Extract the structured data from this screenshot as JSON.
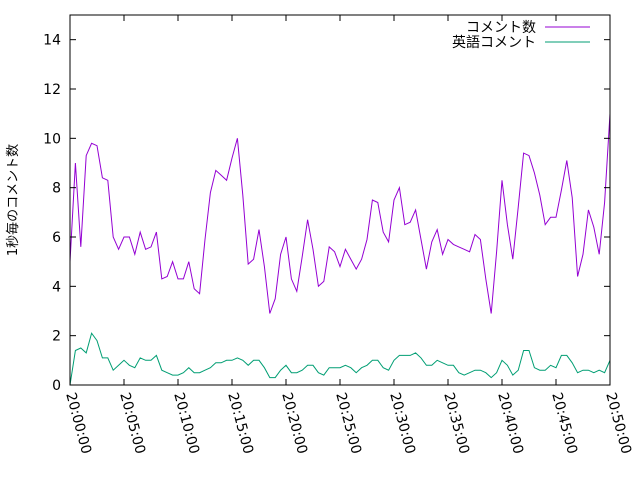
{
  "chart_data": {
    "type": "line",
    "title": "",
    "xlabel": "",
    "ylabel": "1秒毎のコメント数",
    "ylim": [
      0,
      15
    ],
    "yticks": [
      0,
      2,
      4,
      6,
      8,
      10,
      12,
      14
    ],
    "xlim": [
      "20:00:00",
      "20:50:00"
    ],
    "xticks": [
      "20:00:00",
      "20:05:00",
      "20:10:00",
      "20:15:00",
      "20:20:00",
      "20:25:00",
      "20:30:00",
      "20:35:00",
      "20:40:00",
      "20:45:00",
      "20:50:00"
    ],
    "grid": false,
    "legend": "top-right",
    "series": [
      {
        "name": "コメント数",
        "color": "#9400d3",
        "x": [
          "20:00:00",
          "20:00:30",
          "20:01:00",
          "20:01:30",
          "20:02:00",
          "20:02:30",
          "20:03:00",
          "20:03:30",
          "20:04:00",
          "20:04:30",
          "20:05:00",
          "20:05:30",
          "20:06:00",
          "20:06:30",
          "20:07:00",
          "20:07:30",
          "20:08:00",
          "20:08:30",
          "20:09:00",
          "20:09:30",
          "20:10:00",
          "20:10:30",
          "20:11:00",
          "20:11:30",
          "20:12:00",
          "20:12:30",
          "20:13:00",
          "20:13:30",
          "20:14:00",
          "20:14:30",
          "20:15:00",
          "20:15:30",
          "20:16:00",
          "20:16:30",
          "20:17:00",
          "20:17:30",
          "20:18:00",
          "20:18:30",
          "20:19:00",
          "20:19:30",
          "20:20:00",
          "20:20:30",
          "20:21:00",
          "20:21:30",
          "20:22:00",
          "20:22:30",
          "20:23:00",
          "20:23:30",
          "20:24:00",
          "20:24:30",
          "20:25:00",
          "20:25:30",
          "20:26:00",
          "20:26:30",
          "20:27:00",
          "20:27:30",
          "20:28:00",
          "20:28:30",
          "20:29:00",
          "20:29:30",
          "20:30:00",
          "20:30:30",
          "20:31:00",
          "20:31:30",
          "20:32:00",
          "20:32:30",
          "20:33:00",
          "20:33:30",
          "20:34:00",
          "20:34:30",
          "20:35:00",
          "20:35:30",
          "20:36:00",
          "20:36:30",
          "20:37:00",
          "20:37:30",
          "20:38:00",
          "20:38:30",
          "20:39:00",
          "20:39:30",
          "20:40:00",
          "20:40:30",
          "20:41:00",
          "20:41:30",
          "20:42:00",
          "20:42:30",
          "20:43:00",
          "20:43:30",
          "20:44:00",
          "20:44:30",
          "20:45:00",
          "20:45:30",
          "20:46:00",
          "20:46:30",
          "20:47:00",
          "20:47:30",
          "20:48:00",
          "20:48:30",
          "20:49:00",
          "20:49:30",
          "20:50:00"
        ],
        "values": [
          5.0,
          9.0,
          5.6,
          9.3,
          9.8,
          9.7,
          8.4,
          8.3,
          6.0,
          5.5,
          6.0,
          6.0,
          5.3,
          6.2,
          5.5,
          5.6,
          6.2,
          4.3,
          4.4,
          5.0,
          4.3,
          4.3,
          5.0,
          3.9,
          3.7,
          5.9,
          7.8,
          8.7,
          8.5,
          8.3,
          9.2,
          10.0,
          7.7,
          4.9,
          5.1,
          6.3,
          4.8,
          2.9,
          3.5,
          5.3,
          6.0,
          4.3,
          3.8,
          5.2,
          6.7,
          5.5,
          4.0,
          4.2,
          5.6,
          5.4,
          4.8,
          5.5,
          5.1,
          4.7,
          5.1,
          5.9,
          7.5,
          7.4,
          6.2,
          5.8,
          7.5,
          8.0,
          6.5,
          6.6,
          7.1,
          5.9,
          4.7,
          5.8,
          6.3,
          5.3,
          5.9,
          5.7,
          5.6,
          5.5,
          5.4,
          6.1,
          5.9,
          4.3,
          2.9,
          5.4,
          8.3,
          6.5,
          5.1,
          7.2,
          9.4,
          9.3,
          8.6,
          7.7,
          6.5,
          6.8,
          6.8,
          7.9,
          9.1,
          7.6,
          4.4,
          5.3,
          7.1,
          6.4,
          5.3,
          7.4,
          11.0
        ]
      },
      {
        "name": "英語コメント",
        "color": "#009e73",
        "x": [
          "20:00:00",
          "20:00:30",
          "20:01:00",
          "20:01:30",
          "20:02:00",
          "20:02:30",
          "20:03:00",
          "20:03:30",
          "20:04:00",
          "20:04:30",
          "20:05:00",
          "20:05:30",
          "20:06:00",
          "20:06:30",
          "20:07:00",
          "20:07:30",
          "20:08:00",
          "20:08:30",
          "20:09:00",
          "20:09:30",
          "20:10:00",
          "20:10:30",
          "20:11:00",
          "20:11:30",
          "20:12:00",
          "20:12:30",
          "20:13:00",
          "20:13:30",
          "20:14:00",
          "20:14:30",
          "20:15:00",
          "20:15:30",
          "20:16:00",
          "20:16:30",
          "20:17:00",
          "20:17:30",
          "20:18:00",
          "20:18:30",
          "20:19:00",
          "20:19:30",
          "20:20:00",
          "20:20:30",
          "20:21:00",
          "20:21:30",
          "20:22:00",
          "20:22:30",
          "20:23:00",
          "20:23:30",
          "20:24:00",
          "20:24:30",
          "20:25:00",
          "20:25:30",
          "20:26:00",
          "20:26:30",
          "20:27:00",
          "20:27:30",
          "20:28:00",
          "20:28:30",
          "20:29:00",
          "20:29:30",
          "20:30:00",
          "20:30:30",
          "20:31:00",
          "20:31:30",
          "20:32:00",
          "20:32:30",
          "20:33:00",
          "20:33:30",
          "20:34:00",
          "20:34:30",
          "20:35:00",
          "20:35:30",
          "20:36:00",
          "20:36:30",
          "20:37:00",
          "20:37:30",
          "20:38:00",
          "20:38:30",
          "20:39:00",
          "20:39:30",
          "20:40:00",
          "20:40:30",
          "20:41:00",
          "20:41:30",
          "20:42:00",
          "20:42:30",
          "20:43:00",
          "20:43:30",
          "20:44:00",
          "20:44:30",
          "20:45:00",
          "20:45:30",
          "20:46:00",
          "20:46:30",
          "20:47:00",
          "20:47:30",
          "20:48:00",
          "20:48:30",
          "20:49:00",
          "20:49:30",
          "20:50:00"
        ],
        "values": [
          0.0,
          1.4,
          1.5,
          1.3,
          2.1,
          1.8,
          1.1,
          1.1,
          0.6,
          0.8,
          1.0,
          0.8,
          0.7,
          1.1,
          1.0,
          1.0,
          1.2,
          0.6,
          0.5,
          0.4,
          0.4,
          0.5,
          0.7,
          0.5,
          0.5,
          0.6,
          0.7,
          0.9,
          0.9,
          1.0,
          1.0,
          1.1,
          1.0,
          0.8,
          1.0,
          1.0,
          0.7,
          0.3,
          0.3,
          0.6,
          0.8,
          0.5,
          0.5,
          0.6,
          0.8,
          0.8,
          0.5,
          0.4,
          0.7,
          0.7,
          0.7,
          0.8,
          0.7,
          0.5,
          0.7,
          0.8,
          1.0,
          1.0,
          0.7,
          0.6,
          1.0,
          1.2,
          1.2,
          1.2,
          1.3,
          1.1,
          0.8,
          0.8,
          1.0,
          0.9,
          0.8,
          0.8,
          0.5,
          0.4,
          0.5,
          0.6,
          0.6,
          0.5,
          0.3,
          0.5,
          1.0,
          0.8,
          0.4,
          0.6,
          1.4,
          1.4,
          0.7,
          0.6,
          0.6,
          0.8,
          0.7,
          1.2,
          1.2,
          0.9,
          0.5,
          0.6,
          0.6,
          0.5,
          0.6,
          0.5,
          1.0
        ]
      }
    ]
  }
}
